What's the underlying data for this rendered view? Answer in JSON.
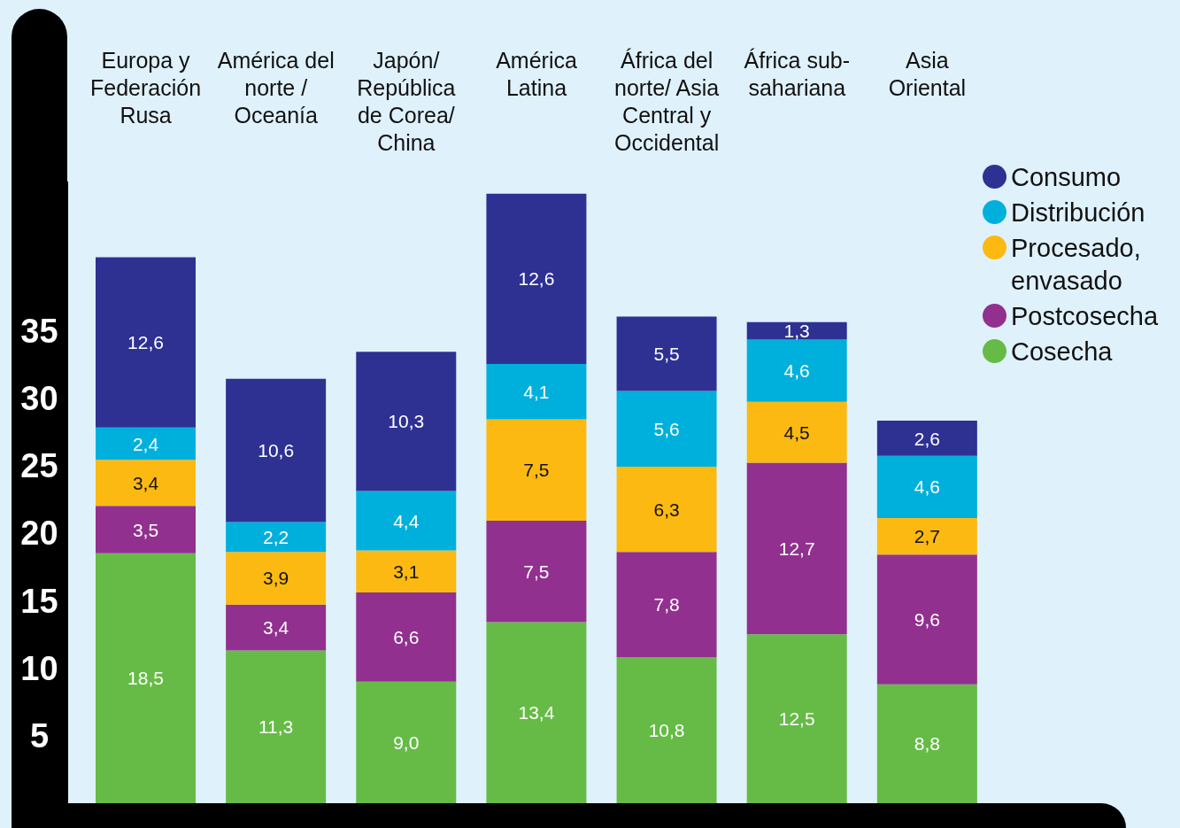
{
  "chart_data": {
    "type": "bar",
    "stacked": true,
    "categories": [
      "Europa y Federación Rusa",
      "América del norte / Oceanía",
      "Japón/ República de Corea/ China",
      "América Latina",
      "África del norte/ Asia Central y Occidental",
      "África sub- sahariana",
      "Asia Oriental"
    ],
    "series": [
      {
        "name": "Cosecha",
        "color": "#66bb46",
        "values": [
          18.5,
          11.3,
          9.0,
          13.4,
          10.8,
          12.5,
          8.8
        ],
        "value_labels": [
          "18,5",
          "11,3",
          "9,0",
          "13,4",
          "10,8",
          "12,5",
          "8,8"
        ]
      },
      {
        "name": "Postcosecha",
        "color": "#92308f",
        "values": [
          3.5,
          3.4,
          6.6,
          7.5,
          7.8,
          12.7,
          9.6
        ],
        "value_labels": [
          "3,5",
          "3,4",
          "6,6",
          "7,5",
          "7,8",
          "12,7",
          "9,6"
        ]
      },
      {
        "name": "Procesado, envasado",
        "color": "#fbb912",
        "values": [
          3.4,
          3.9,
          3.1,
          7.5,
          6.3,
          4.5,
          2.7
        ],
        "value_labels": [
          "3,4",
          "3,9",
          "3,1",
          "7,5",
          "6,3",
          "4,5",
          "2,7"
        ]
      },
      {
        "name": "Distribución",
        "color": "#00b0dc",
        "values": [
          2.4,
          2.2,
          4.4,
          4.1,
          5.6,
          4.6,
          4.6
        ],
        "value_labels": [
          "2,4",
          "2,2",
          "4,4",
          "4,1",
          "5,6",
          "4,6",
          "4,6"
        ]
      },
      {
        "name": "Consumo",
        "color": "#2e3192",
        "values": [
          12.6,
          10.6,
          10.3,
          12.6,
          5.5,
          1.3,
          2.6
        ],
        "value_labels": [
          "12,6",
          "10,6",
          "10,3",
          "12,6",
          "5,5",
          "1,3",
          "2,6"
        ]
      }
    ],
    "ylim": [
      0,
      46
    ],
    "yticks": [
      5,
      10,
      15,
      20,
      25,
      30,
      35
    ],
    "grid": false,
    "legend": "right"
  }
}
